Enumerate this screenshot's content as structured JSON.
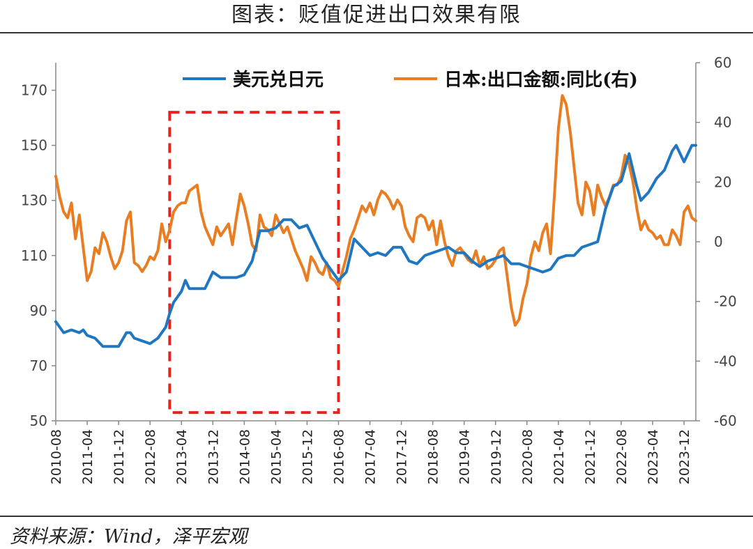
{
  "title": "图表：贬值促进出口效果有限",
  "source": "资料来源：Wind，泽平宏观",
  "chart_data": {
    "type": "line",
    "ylim_left": [
      50,
      180
    ],
    "yticks_left": [
      50,
      70,
      90,
      110,
      130,
      150,
      170
    ],
    "ylim_right": [
      -60,
      60
    ],
    "yticks_right": [
      -60,
      -40,
      -20,
      0,
      20,
      40,
      60
    ],
    "x_start": "2010-08",
    "x_end": "2024-03",
    "x_ticks": [
      "2010-08",
      "2011-04",
      "2011-12",
      "2012-08",
      "2013-04",
      "2013-12",
      "2014-08",
      "2015-04",
      "2015-12",
      "2016-08",
      "2017-04",
      "2017-12",
      "2018-08",
      "2019-04",
      "2019-12",
      "2020-08",
      "2021-04",
      "2021-12",
      "2022-08",
      "2023-04",
      "2023-12"
    ],
    "grid": false,
    "legend": "top",
    "highlight_box": {
      "x_from": "2013-01",
      "x_to": "2016-08",
      "y_from": 53,
      "y_to": 162,
      "color": "#e8231f"
    },
    "series": [
      {
        "name": "美元兑日元",
        "axis": "left",
        "color": "#1f77c1",
        "points": [
          [
            "2010-08",
            86
          ],
          [
            "2010-10",
            82
          ],
          [
            "2010-12",
            83
          ],
          [
            "2011-02",
            82
          ],
          [
            "2011-03",
            83
          ],
          [
            "2011-04",
            81
          ],
          [
            "2011-06",
            80
          ],
          [
            "2011-08",
            77
          ],
          [
            "2011-10",
            77
          ],
          [
            "2011-12",
            77
          ],
          [
            "2012-02",
            82
          ],
          [
            "2012-03",
            82
          ],
          [
            "2012-04",
            80
          ],
          [
            "2012-06",
            79
          ],
          [
            "2012-08",
            78
          ],
          [
            "2012-10",
            80
          ],
          [
            "2012-12",
            84
          ],
          [
            "2013-01",
            89
          ],
          [
            "2013-02",
            93
          ],
          [
            "2013-04",
            97
          ],
          [
            "2013-05",
            101
          ],
          [
            "2013-06",
            98
          ],
          [
            "2013-08",
            98
          ],
          [
            "2013-10",
            98
          ],
          [
            "2013-12",
            104
          ],
          [
            "2014-02",
            102
          ],
          [
            "2014-04",
            102
          ],
          [
            "2014-06",
            102
          ],
          [
            "2014-08",
            103
          ],
          [
            "2014-10",
            108
          ],
          [
            "2014-12",
            119
          ],
          [
            "2015-02",
            119
          ],
          [
            "2015-04",
            120
          ],
          [
            "2015-06",
            123
          ],
          [
            "2015-08",
            123
          ],
          [
            "2015-10",
            120
          ],
          [
            "2015-12",
            121
          ],
          [
            "2016-02",
            115
          ],
          [
            "2016-04",
            109
          ],
          [
            "2016-06",
            105
          ],
          [
            "2016-08",
            101
          ],
          [
            "2016-10",
            104
          ],
          [
            "2016-12",
            116
          ],
          [
            "2017-02",
            113
          ],
          [
            "2017-04",
            110
          ],
          [
            "2017-06",
            111
          ],
          [
            "2017-08",
            110
          ],
          [
            "2017-10",
            113
          ],
          [
            "2017-12",
            113
          ],
          [
            "2018-02",
            108
          ],
          [
            "2018-04",
            107
          ],
          [
            "2018-06",
            110
          ],
          [
            "2018-08",
            111
          ],
          [
            "2018-10",
            112
          ],
          [
            "2018-12",
            113
          ],
          [
            "2019-02",
            111
          ],
          [
            "2019-04",
            111
          ],
          [
            "2019-06",
            108
          ],
          [
            "2019-08",
            106
          ],
          [
            "2019-10",
            108
          ],
          [
            "2019-12",
            109
          ],
          [
            "2020-02",
            110
          ],
          [
            "2020-04",
            107
          ],
          [
            "2020-06",
            107
          ],
          [
            "2020-08",
            106
          ],
          [
            "2020-10",
            105
          ],
          [
            "2020-12",
            104
          ],
          [
            "2021-02",
            105
          ],
          [
            "2021-04",
            109
          ],
          [
            "2021-06",
            110
          ],
          [
            "2021-08",
            110
          ],
          [
            "2021-10",
            113
          ],
          [
            "2021-12",
            114
          ],
          [
            "2022-02",
            115
          ],
          [
            "2022-04",
            127
          ],
          [
            "2022-06",
            135
          ],
          [
            "2022-08",
            137
          ],
          [
            "2022-10",
            147
          ],
          [
            "2022-12",
            135
          ],
          [
            "2023-01",
            130
          ],
          [
            "2023-03",
            133
          ],
          [
            "2023-05",
            138
          ],
          [
            "2023-07",
            141
          ],
          [
            "2023-09",
            148
          ],
          [
            "2023-10",
            150
          ],
          [
            "2023-12",
            144
          ],
          [
            "2024-02",
            150
          ],
          [
            "2024-03",
            150
          ]
        ]
      },
      {
        "name": "日本:出口金额:同比(右)",
        "axis": "right",
        "color": "#e87d22",
        "points": [
          [
            "2010-08",
            22
          ],
          [
            "2010-09",
            15
          ],
          [
            "2010-10",
            10
          ],
          [
            "2010-11",
            8
          ],
          [
            "2010-12",
            13
          ],
          [
            "2011-01",
            1
          ],
          [
            "2011-02",
            9
          ],
          [
            "2011-03",
            -2
          ],
          [
            "2011-04",
            -13
          ],
          [
            "2011-05",
            -10
          ],
          [
            "2011-06",
            -2
          ],
          [
            "2011-07",
            -4
          ],
          [
            "2011-08",
            3
          ],
          [
            "2011-09",
            0
          ],
          [
            "2011-10",
            -5
          ],
          [
            "2011-11",
            -9
          ],
          [
            "2011-12",
            -7
          ],
          [
            "2012-01",
            -3
          ],
          [
            "2012-02",
            7
          ],
          [
            "2012-03",
            10
          ],
          [
            "2012-04",
            -7
          ],
          [
            "2012-05",
            -8
          ],
          [
            "2012-06",
            -10
          ],
          [
            "2012-07",
            -8
          ],
          [
            "2012-08",
            -5
          ],
          [
            "2012-09",
            -6
          ],
          [
            "2012-10",
            -3
          ],
          [
            "2012-11",
            6
          ],
          [
            "2012-12",
            0
          ],
          [
            "2013-01",
            4
          ],
          [
            "2013-02",
            10
          ],
          [
            "2013-03",
            12
          ],
          [
            "2013-04",
            13
          ],
          [
            "2013-05",
            13
          ],
          [
            "2013-06",
            17
          ],
          [
            "2013-07",
            18
          ],
          [
            "2013-08",
            19
          ],
          [
            "2013-09",
            10
          ],
          [
            "2013-10",
            5
          ],
          [
            "2013-11",
            2
          ],
          [
            "2013-12",
            -1
          ],
          [
            "2014-01",
            5
          ],
          [
            "2014-02",
            2
          ],
          [
            "2014-03",
            4
          ],
          [
            "2014-04",
            6
          ],
          [
            "2014-05",
            -1
          ],
          [
            "2014-06",
            8
          ],
          [
            "2014-07",
            16
          ],
          [
            "2014-08",
            12
          ],
          [
            "2014-09",
            6
          ],
          [
            "2014-10",
            -1
          ],
          [
            "2014-11",
            -3
          ],
          [
            "2014-12",
            9
          ],
          [
            "2015-01",
            5
          ],
          [
            "2015-02",
            4
          ],
          [
            "2015-03",
            2
          ],
          [
            "2015-04",
            9
          ],
          [
            "2015-05",
            6
          ],
          [
            "2015-06",
            3
          ],
          [
            "2015-07",
            5
          ],
          [
            "2015-08",
            1
          ],
          [
            "2015-09",
            -3
          ],
          [
            "2015-10",
            -6
          ],
          [
            "2015-11",
            -9
          ],
          [
            "2015-12",
            -13
          ],
          [
            "2016-01",
            -5
          ],
          [
            "2016-02",
            -7
          ],
          [
            "2016-03",
            -10
          ],
          [
            "2016-04",
            -11
          ],
          [
            "2016-05",
            -7
          ],
          [
            "2016-06",
            -12
          ],
          [
            "2016-07",
            -13
          ],
          [
            "2016-08",
            -15
          ],
          [
            "2016-09",
            -10
          ],
          [
            "2016-10",
            -5
          ],
          [
            "2016-11",
            1
          ],
          [
            "2016-12",
            4
          ],
          [
            "2017-01",
            8
          ],
          [
            "2017-02",
            12
          ],
          [
            "2017-03",
            10
          ],
          [
            "2017-04",
            13
          ],
          [
            "2017-05",
            9
          ],
          [
            "2017-06",
            14
          ],
          [
            "2017-07",
            17
          ],
          [
            "2017-08",
            16
          ],
          [
            "2017-09",
            14
          ],
          [
            "2017-10",
            11
          ],
          [
            "2017-11",
            14
          ],
          [
            "2017-12",
            12
          ],
          [
            "2018-01",
            5
          ],
          [
            "2018-02",
            2
          ],
          [
            "2018-03",
            0
          ],
          [
            "2018-04",
            8
          ],
          [
            "2018-05",
            9
          ],
          [
            "2018-06",
            8
          ],
          [
            "2018-07",
            4
          ],
          [
            "2018-08",
            7
          ],
          [
            "2018-09",
            -1
          ],
          [
            "2018-10",
            7
          ],
          [
            "2018-11",
            0
          ],
          [
            "2018-12",
            -5
          ],
          [
            "2019-01",
            -8
          ],
          [
            "2019-02",
            -3
          ],
          [
            "2019-03",
            -2
          ],
          [
            "2019-04",
            -4
          ],
          [
            "2019-05",
            -6
          ],
          [
            "2019-06",
            -7
          ],
          [
            "2019-07",
            -3
          ],
          [
            "2019-08",
            -8
          ],
          [
            "2019-09",
            -5
          ],
          [
            "2019-10",
            -9
          ],
          [
            "2019-11",
            -8
          ],
          [
            "2019-12",
            -6
          ],
          [
            "2020-01",
            -3
          ],
          [
            "2020-02",
            -2
          ],
          [
            "2020-03",
            -12
          ],
          [
            "2020-04",
            -22
          ],
          [
            "2020-05",
            -28
          ],
          [
            "2020-06",
            -26
          ],
          [
            "2020-07",
            -19
          ],
          [
            "2020-08",
            -14
          ],
          [
            "2020-09",
            -5
          ],
          [
            "2020-10",
            0
          ],
          [
            "2020-11",
            -3
          ],
          [
            "2020-12",
            3
          ],
          [
            "2021-01",
            6
          ],
          [
            "2021-02",
            -4
          ],
          [
            "2021-03",
            16
          ],
          [
            "2021-04",
            38
          ],
          [
            "2021-05",
            49
          ],
          [
            "2021-06",
            46
          ],
          [
            "2021-07",
            37
          ],
          [
            "2021-08",
            25
          ],
          [
            "2021-09",
            13
          ],
          [
            "2021-10",
            9
          ],
          [
            "2021-11",
            20
          ],
          [
            "2021-12",
            17
          ],
          [
            "2022-01",
            9
          ],
          [
            "2022-02",
            19
          ],
          [
            "2022-03",
            15
          ],
          [
            "2022-04",
            12
          ],
          [
            "2022-05",
            15
          ],
          [
            "2022-06",
            19
          ],
          [
            "2022-07",
            19
          ],
          [
            "2022-08",
            22
          ],
          [
            "2022-09",
            29
          ],
          [
            "2022-10",
            26
          ],
          [
            "2022-11",
            20
          ],
          [
            "2022-12",
            11
          ],
          [
            "2023-01",
            4
          ],
          [
            "2023-02",
            7
          ],
          [
            "2023-03",
            4
          ],
          [
            "2023-04",
            3
          ],
          [
            "2023-05",
            1
          ],
          [
            "2023-06",
            2
          ],
          [
            "2023-07",
            -1
          ],
          [
            "2023-08",
            -1
          ],
          [
            "2023-09",
            4
          ],
          [
            "2023-10",
            2
          ],
          [
            "2023-11",
            -1
          ],
          [
            "2023-12",
            10
          ],
          [
            "2024-01",
            12
          ],
          [
            "2024-02",
            8
          ],
          [
            "2024-03",
            7
          ]
        ]
      }
    ]
  }
}
